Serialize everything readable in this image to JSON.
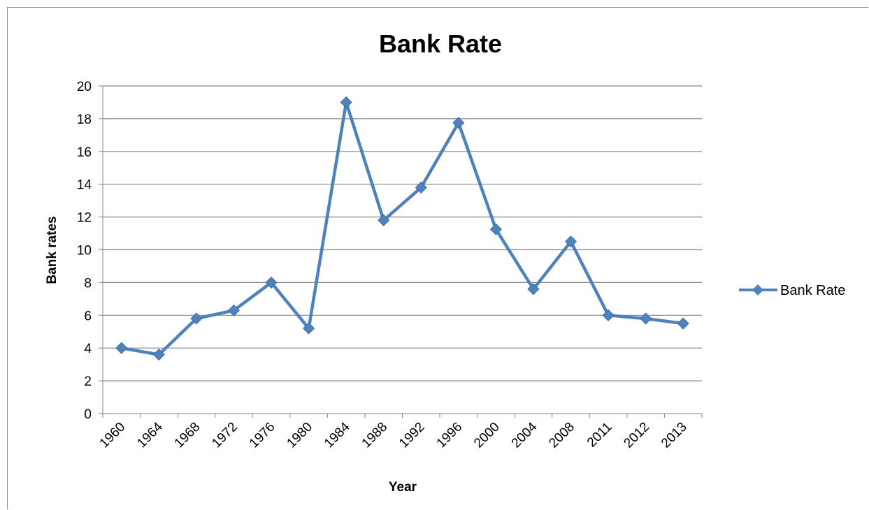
{
  "chart_data": {
    "type": "line",
    "title": "Bank Rate",
    "xlabel": "Year",
    "ylabel": "Bank rates",
    "categories": [
      "1960",
      "1964",
      "1968",
      "1972",
      "1976",
      "1980",
      "1984",
      "1988",
      "1992",
      "1996",
      "2000",
      "2004",
      "2008",
      "2011",
      "2012",
      "2013"
    ],
    "series": [
      {
        "name": "Bank Rate",
        "color": "#4F81BD",
        "values": [
          4.0,
          3.6,
          5.8,
          6.3,
          8.0,
          5.2,
          19.0,
          11.8,
          13.8,
          17.75,
          11.25,
          7.6,
          10.5,
          6.0,
          5.8,
          5.5
        ]
      }
    ],
    "ylim": [
      0,
      20
    ],
    "yticks": [
      0,
      2,
      4,
      6,
      8,
      10,
      12,
      14,
      16,
      18,
      20
    ],
    "grid": true,
    "legend_position": "right"
  }
}
